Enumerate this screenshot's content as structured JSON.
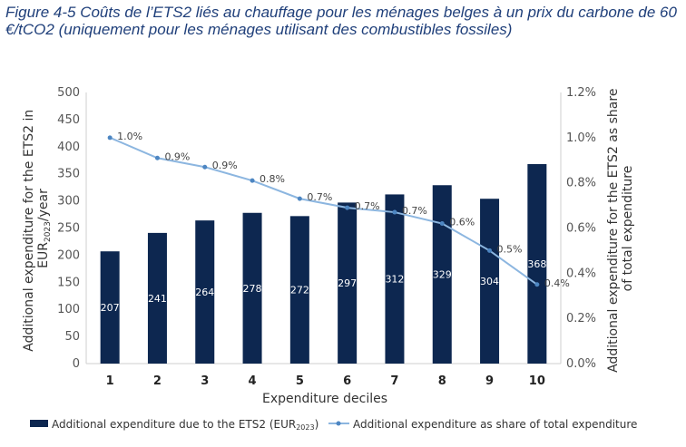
{
  "caption": "Figure 4-5  Coûts de l’ETS2 liés au chauffage pour les ménages belges à un prix du carbone de 60 €/tCO2 (uniquement pour les ménages utilisant des combustibles fossiles)",
  "chart_data": {
    "type": "bar",
    "categories": [
      "1",
      "2",
      "3",
      "4",
      "5",
      "6",
      "7",
      "8",
      "9",
      "10"
    ],
    "xlabel": "Expenditure deciles",
    "ylabel": "Additional expenditure for the ETS2 in EUR2023/year",
    "ylabel_line1": "Additional expenditure for the ETS2 in",
    "ylabel_line2_base": "EUR",
    "ylabel_line2_sub": "2023",
    "ylabel_line2_tail": "/year",
    "y2label": "Additional expenditure for the ETS2 as share of total expenditure",
    "y2label_line1": "Additional expenditure for the ETS2 as share",
    "y2label_line2": "of total expenditure",
    "ylim": [
      0,
      500
    ],
    "y2lim": [
      0,
      1.2
    ],
    "yticks": [
      "0",
      "50",
      "100",
      "150",
      "200",
      "250",
      "300",
      "350",
      "400",
      "450",
      "500"
    ],
    "y2ticks": [
      "0.0%",
      "0.2%",
      "0.4%",
      "0.6%",
      "0.8%",
      "1.0%",
      "1.2%"
    ],
    "grid": false,
    "legend_position": "bottom",
    "series": [
      {
        "name": "Additional expenditure due to the ETS2 (EUR2023)",
        "legend_base": "Additional expenditure due to the ETS2 (EUR",
        "legend_sub": "2023",
        "legend_tail": ")",
        "type": "bar",
        "axis": "left",
        "color": "#0d2750",
        "values": [
          207,
          241,
          264,
          278,
          272,
          297,
          312,
          329,
          304,
          368
        ],
        "labels": [
          "207",
          "241",
          "264",
          "278",
          "272",
          "297",
          "312",
          "329",
          "304",
          "368"
        ]
      },
      {
        "name": "Additional expenditure as share of total expenditure",
        "type": "line",
        "axis": "right",
        "color": "#8cb6e0",
        "values": [
          1.0,
          0.91,
          0.87,
          0.81,
          0.73,
          0.69,
          0.67,
          0.62,
          0.5,
          0.35
        ],
        "labels": [
          "1.0%",
          "0.9%",
          "0.9%",
          "0.8%",
          "0.7%",
          "0.7%",
          "0.7%",
          "0.6%",
          "0.5%",
          "0.4%"
        ]
      }
    ]
  }
}
